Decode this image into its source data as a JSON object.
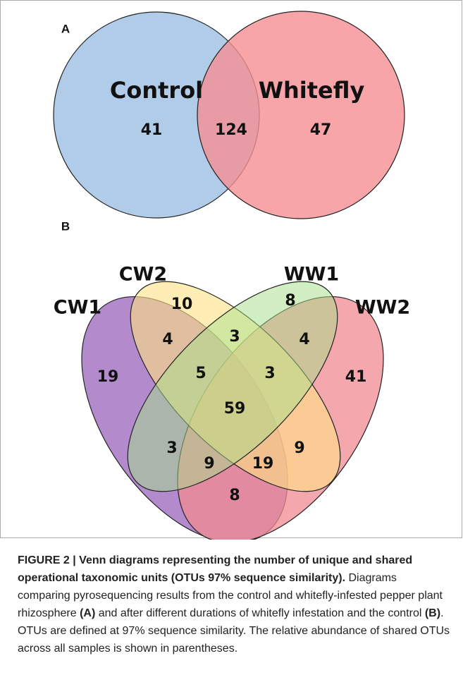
{
  "figure": {
    "panel_a": {
      "label": "A",
      "sets": [
        "Control",
        "Whitefly"
      ],
      "counts": {
        "control_only": "41",
        "shared": "124",
        "whitefly_only": "47"
      }
    },
    "panel_b": {
      "label": "B",
      "sets": [
        "CW1",
        "CW2",
        "WW1",
        "WW2"
      ],
      "regions": [
        "10",
        "8",
        "19",
        "41",
        "4",
        "3",
        "4",
        "5",
        "3",
        "59",
        "3",
        "9",
        "19",
        "9",
        "8"
      ]
    },
    "caption": {
      "title": "FIGURE 2 | Venn diagrams representing the number of unique and shared operational taxonomic units (OTUs 97% sequence similarity).",
      "body_1": "Diagrams comparing pyrosequencing results from the control and whitefly-infested pepper plant rhizosphere",
      "ref_a": "(A)",
      "body_2": "and after different durations of whitefly infestation and the control",
      "ref_b": "(B)",
      "body_3": ". OTUs are defined at 97% sequence similarity. The relative abundance of shared OTUs across all samples is shown in parentheses."
    }
  }
}
